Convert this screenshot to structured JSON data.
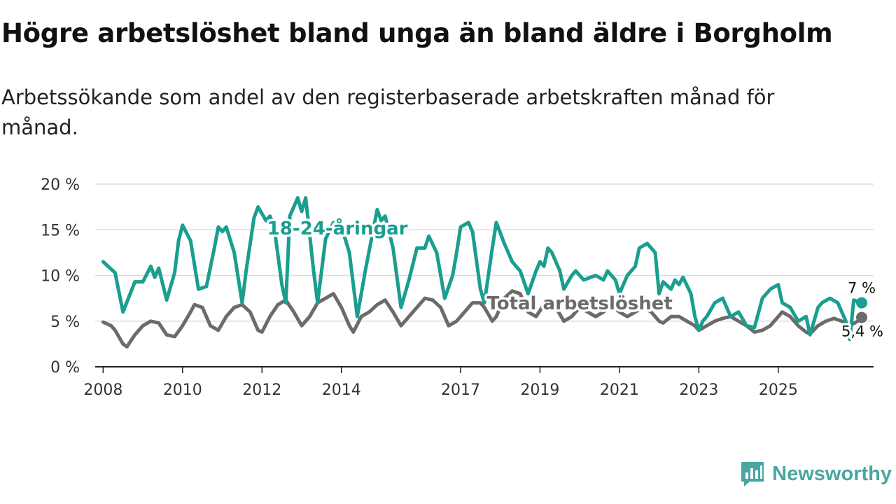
{
  "header": {
    "title": "Högre arbetslöshet bland unga än bland äldre i Borgholm",
    "subtitle": "Arbetssökande som andel av den registerbaserade arbetskraften månad för månad."
  },
  "brand": {
    "name": "Newsworthy",
    "icon": "newsworthy-logo-icon",
    "color": "#4aa6a1"
  },
  "chart_data": {
    "type": "line",
    "title": "Högre arbetslöshet bland unga än bland äldre i Borgholm",
    "subtitle": "Arbetssökande som andel av den registerbaserade arbetskraften månad för månad.",
    "xlabel": "",
    "ylabel": "",
    "xlim": [
      2007.8,
      2027.4
    ],
    "ylim": [
      0,
      20
    ],
    "y_ticks": [
      0,
      5,
      10,
      15,
      20
    ],
    "y_tick_labels": [
      "0 %",
      "5 %",
      "10 %",
      "15 %",
      "20 %"
    ],
    "x_ticks": [
      2008,
      2010,
      2012,
      2014,
      2017,
      2019,
      2021,
      2023,
      2025
    ],
    "x_tick_labels": [
      "2008",
      "2010",
      "2012",
      "2014",
      "2017",
      "2019",
      "2021",
      "2023",
      "2025"
    ],
    "grid": true,
    "series": [
      {
        "name": "18-24-åringar",
        "label": "18-24-åringar",
        "color": "#1a9e8f",
        "end_label": "7 %",
        "points": [
          [
            2008.0,
            11.5
          ],
          [
            2008.3,
            10.3
          ],
          [
            2008.5,
            6.0
          ],
          [
            2008.8,
            9.3
          ],
          [
            2009.0,
            9.3
          ],
          [
            2009.2,
            11.0
          ],
          [
            2009.3,
            9.8
          ],
          [
            2009.4,
            10.8
          ],
          [
            2009.6,
            7.3
          ],
          [
            2009.8,
            10.3
          ],
          [
            2009.9,
            13.8
          ],
          [
            2010.0,
            15.5
          ],
          [
            2010.2,
            13.8
          ],
          [
            2010.4,
            8.5
          ],
          [
            2010.6,
            8.8
          ],
          [
            2010.8,
            13.0
          ],
          [
            2010.9,
            15.3
          ],
          [
            2011.0,
            14.8
          ],
          [
            2011.1,
            15.3
          ],
          [
            2011.3,
            12.5
          ],
          [
            2011.5,
            7.0
          ],
          [
            2011.6,
            10.5
          ],
          [
            2011.8,
            16.3
          ],
          [
            2011.9,
            17.5
          ],
          [
            2012.1,
            16.0
          ],
          [
            2012.2,
            16.5
          ],
          [
            2012.3,
            15.5
          ],
          [
            2012.5,
            9.0
          ],
          [
            2012.6,
            7.0
          ],
          [
            2012.7,
            16.5
          ],
          [
            2012.9,
            18.5
          ],
          [
            2013.0,
            17.0
          ],
          [
            2013.1,
            18.5
          ],
          [
            2013.3,
            10.5
          ],
          [
            2013.4,
            7.0
          ],
          [
            2013.6,
            14.0
          ],
          [
            2013.8,
            15.8
          ],
          [
            2014.0,
            15.3
          ],
          [
            2014.2,
            12.5
          ],
          [
            2014.4,
            5.5
          ],
          [
            2014.6,
            10.5
          ],
          [
            2014.9,
            17.2
          ],
          [
            2015.0,
            16.0
          ],
          [
            2015.1,
            16.5
          ],
          [
            2015.3,
            13.0
          ],
          [
            2015.5,
            6.5
          ],
          [
            2015.7,
            9.5
          ],
          [
            2015.9,
            13.0
          ],
          [
            2016.1,
            13.0
          ],
          [
            2016.2,
            14.3
          ],
          [
            2016.4,
            12.5
          ],
          [
            2016.6,
            7.5
          ],
          [
            2016.8,
            10.0
          ],
          [
            2016.9,
            12.5
          ],
          [
            2017.0,
            15.3
          ],
          [
            2017.2,
            15.8
          ],
          [
            2017.3,
            14.8
          ],
          [
            2017.5,
            8.5
          ],
          [
            2017.6,
            7.0
          ],
          [
            2017.8,
            13.0
          ],
          [
            2017.9,
            15.8
          ],
          [
            2018.1,
            13.5
          ],
          [
            2018.3,
            11.5
          ],
          [
            2018.5,
            10.5
          ],
          [
            2018.7,
            8.0
          ],
          [
            2018.9,
            10.5
          ],
          [
            2019.0,
            11.5
          ],
          [
            2019.1,
            11.0
          ],
          [
            2019.2,
            13.0
          ],
          [
            2019.3,
            12.5
          ],
          [
            2019.5,
            10.5
          ],
          [
            2019.6,
            8.5
          ],
          [
            2019.8,
            10.0
          ],
          [
            2019.9,
            10.5
          ],
          [
            2020.1,
            9.5
          ],
          [
            2020.4,
            10.0
          ],
          [
            2020.6,
            9.5
          ],
          [
            2020.7,
            10.5
          ],
          [
            2020.9,
            9.5
          ],
          [
            2021.0,
            8.0
          ],
          [
            2021.2,
            10.0
          ],
          [
            2021.4,
            11.0
          ],
          [
            2021.5,
            13.0
          ],
          [
            2021.7,
            13.5
          ],
          [
            2021.9,
            12.5
          ],
          [
            2022.0,
            8.0
          ],
          [
            2022.1,
            9.3
          ],
          [
            2022.3,
            8.5
          ],
          [
            2022.4,
            9.5
          ],
          [
            2022.5,
            9.0
          ],
          [
            2022.6,
            9.8
          ],
          [
            2022.8,
            8.0
          ],
          [
            2022.9,
            5.5
          ],
          [
            2023.0,
            4.0
          ],
          [
            2023.1,
            5.0
          ],
          [
            2023.2,
            5.5
          ],
          [
            2023.4,
            7.0
          ],
          [
            2023.6,
            7.5
          ],
          [
            2023.8,
            5.5
          ],
          [
            2024.0,
            6.0
          ],
          [
            2024.2,
            4.5
          ],
          [
            2024.4,
            4.3
          ],
          [
            2024.6,
            7.5
          ],
          [
            2024.8,
            8.5
          ],
          [
            2025.0,
            9.0
          ],
          [
            2025.1,
            7.0
          ],
          [
            2025.3,
            6.5
          ],
          [
            2025.5,
            5.0
          ],
          [
            2025.7,
            5.5
          ],
          [
            2025.8,
            3.5
          ],
          [
            2026.0,
            6.5
          ],
          [
            2026.1,
            7.0
          ],
          [
            2026.3,
            7.5
          ],
          [
            2026.5,
            7.0
          ],
          [
            2026.6,
            6.0
          ],
          [
            2026.7,
            5.0
          ],
          [
            2026.8,
            3.0
          ],
          [
            2026.9,
            7.3
          ],
          [
            2027.1,
            7.0
          ]
        ]
      },
      {
        "name": "Total arbetslöshet",
        "label": "Total arbetslöshet",
        "color": "#6b6b6b",
        "end_label": "5,4 %",
        "points": [
          [
            2008.0,
            4.9
          ],
          [
            2008.2,
            4.5
          ],
          [
            2008.3,
            4.0
          ],
          [
            2008.5,
            2.5
          ],
          [
            2008.6,
            2.2
          ],
          [
            2008.8,
            3.5
          ],
          [
            2009.0,
            4.5
          ],
          [
            2009.2,
            5.0
          ],
          [
            2009.4,
            4.8
          ],
          [
            2009.6,
            3.5
          ],
          [
            2009.8,
            3.3
          ],
          [
            2010.0,
            4.5
          ],
          [
            2010.2,
            6.0
          ],
          [
            2010.3,
            6.8
          ],
          [
            2010.5,
            6.5
          ],
          [
            2010.7,
            4.5
          ],
          [
            2010.9,
            4.0
          ],
          [
            2011.1,
            5.5
          ],
          [
            2011.3,
            6.5
          ],
          [
            2011.5,
            6.8
          ],
          [
            2011.7,
            6.0
          ],
          [
            2011.9,
            4.0
          ],
          [
            2012.0,
            3.8
          ],
          [
            2012.2,
            5.5
          ],
          [
            2012.4,
            6.8
          ],
          [
            2012.6,
            7.3
          ],
          [
            2012.8,
            6.0
          ],
          [
            2013.0,
            4.5
          ],
          [
            2013.2,
            5.5
          ],
          [
            2013.4,
            7.0
          ],
          [
            2013.6,
            7.5
          ],
          [
            2013.8,
            8.0
          ],
          [
            2014.0,
            6.5
          ],
          [
            2014.2,
            4.5
          ],
          [
            2014.3,
            3.8
          ],
          [
            2014.5,
            5.5
          ],
          [
            2014.7,
            6.0
          ],
          [
            2014.9,
            6.8
          ],
          [
            2015.1,
            7.3
          ],
          [
            2015.3,
            6.0
          ],
          [
            2015.5,
            4.5
          ],
          [
            2015.7,
            5.5
          ],
          [
            2015.9,
            6.5
          ],
          [
            2016.1,
            7.5
          ],
          [
            2016.3,
            7.3
          ],
          [
            2016.5,
            6.5
          ],
          [
            2016.7,
            4.5
          ],
          [
            2016.9,
            5.0
          ],
          [
            2017.1,
            6.0
          ],
          [
            2017.3,
            7.0
          ],
          [
            2017.5,
            7.0
          ],
          [
            2017.6,
            6.5
          ],
          [
            2017.8,
            5.0
          ],
          [
            2017.9,
            5.5
          ],
          [
            2018.1,
            7.5
          ],
          [
            2018.3,
            8.3
          ],
          [
            2018.5,
            8.0
          ],
          [
            2018.7,
            6.0
          ],
          [
            2018.9,
            5.5
          ],
          [
            2019.1,
            6.8
          ],
          [
            2019.2,
            7.0
          ],
          [
            2019.4,
            6.5
          ],
          [
            2019.6,
            5.0
          ],
          [
            2019.8,
            5.5
          ],
          [
            2020.0,
            6.5
          ],
          [
            2020.2,
            6.0
          ],
          [
            2020.4,
            5.5
          ],
          [
            2020.6,
            6.0
          ],
          [
            2020.8,
            6.8
          ],
          [
            2021.0,
            6.0
          ],
          [
            2021.2,
            5.5
          ],
          [
            2021.4,
            6.0
          ],
          [
            2021.6,
            6.5
          ],
          [
            2021.8,
            6.0
          ],
          [
            2022.0,
            5.0
          ],
          [
            2022.1,
            4.8
          ],
          [
            2022.3,
            5.5
          ],
          [
            2022.5,
            5.5
          ],
          [
            2022.7,
            5.0
          ],
          [
            2022.9,
            4.5
          ],
          [
            2023.0,
            4.0
          ],
          [
            2023.2,
            4.5
          ],
          [
            2023.4,
            5.0
          ],
          [
            2023.6,
            5.3
          ],
          [
            2023.8,
            5.5
          ],
          [
            2024.0,
            5.0
          ],
          [
            2024.2,
            4.5
          ],
          [
            2024.4,
            3.8
          ],
          [
            2024.6,
            4.0
          ],
          [
            2024.8,
            4.5
          ],
          [
            2025.0,
            5.5
          ],
          [
            2025.1,
            6.0
          ],
          [
            2025.3,
            5.5
          ],
          [
            2025.5,
            4.5
          ],
          [
            2025.7,
            3.8
          ],
          [
            2025.8,
            3.6
          ],
          [
            2026.0,
            4.5
          ],
          [
            2026.2,
            5.0
          ],
          [
            2026.4,
            5.3
          ],
          [
            2026.6,
            5.0
          ],
          [
            2026.8,
            4.5
          ],
          [
            2027.0,
            5.0
          ],
          [
            2027.1,
            5.4
          ]
        ]
      }
    ]
  }
}
